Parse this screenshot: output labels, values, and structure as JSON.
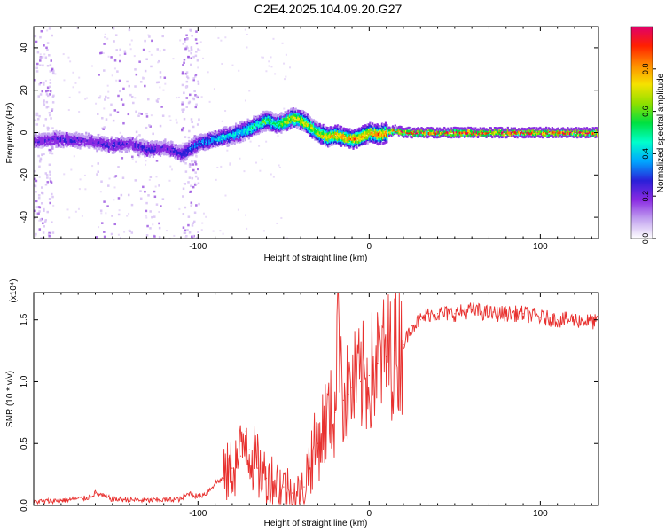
{
  "title": "C2E4.2025.104.09.20.G27",
  "colors": {
    "snr_line": "#e8312f",
    "axis": "#000000",
    "background": "#ffffff"
  },
  "chart_data": [
    {
      "type": "heatmap",
      "name": "spectrogram",
      "xlabel": "Height of straight line (km)",
      "ylabel": "Frequency (Hz)",
      "xlim": [
        -196,
        134
      ],
      "ylim": [
        -50,
        50
      ],
      "x_ticks": [
        "-100",
        "0",
        "100"
      ],
      "x_tick_values": [
        -100,
        0,
        100
      ],
      "y_ticks": [
        "-40",
        "-20",
        "0",
        "20",
        "40"
      ],
      "y_tick_values": [
        -40,
        -20,
        0,
        20,
        40
      ],
      "ridge": {
        "x": [
          -196,
          -180,
          -165,
          -150,
          -140,
          -130,
          -120,
          -110,
          -100,
          -90,
          -80,
          -70,
          -65,
          -60,
          -55,
          -50,
          -45,
          -40,
          -35,
          -30,
          -25,
          -20,
          -15,
          -10,
          -5,
          0,
          5,
          10,
          15,
          20,
          40,
          60,
          80,
          100,
          120,
          134
        ],
        "frequency": [
          -4,
          -3,
          -4,
          -6,
          -5,
          -8,
          -7,
          -10,
          -5,
          -3,
          -1,
          2,
          4,
          6,
          4,
          5,
          7,
          6,
          3,
          0,
          -2,
          -1,
          -2,
          -3,
          -2,
          0,
          -1,
          0,
          1,
          0,
          0,
          0,
          0,
          0,
          0,
          0
        ],
        "amplitude": [
          0.22,
          0.25,
          0.22,
          0.28,
          0.22,
          0.28,
          0.22,
          0.3,
          0.35,
          0.4,
          0.45,
          0.5,
          0.55,
          0.6,
          0.5,
          0.7,
          0.75,
          0.75,
          0.72,
          0.75,
          0.8,
          0.8,
          0.82,
          0.85,
          0.85,
          0.85,
          0.88,
          0.9,
          0.92,
          0.95,
          0.96,
          0.97,
          0.97,
          0.97,
          0.97,
          0.97
        ]
      },
      "noise_bands_km": [
        [
          -196,
          -185
        ],
        [
          -160,
          -120
        ],
        [
          -110,
          -100
        ]
      ],
      "colorbar": {
        "label": "Normalized spectral amplitude",
        "range": [
          0,
          1
        ],
        "ticks": [
          "0.0",
          "0.2",
          "0.4",
          "0.6",
          "0.8"
        ],
        "tick_values": [
          0,
          0.2,
          0.4,
          0.6,
          0.8
        ],
        "stops": [
          "#ffffff",
          "#c3a3f0",
          "#8a2be2",
          "#2a1fd8",
          "#00a6ff",
          "#00ffcc",
          "#00e040",
          "#8fe000",
          "#f6e200",
          "#ff8c00",
          "#ff2000",
          "#e0006a"
        ]
      }
    },
    {
      "type": "line",
      "name": "snr",
      "xlabel": "Height of straight line (km)",
      "ylabel": "SNR (10 * v/v)",
      "y_scale_label": "(x10⁴)",
      "xlim": [
        -196,
        134
      ],
      "ylim": [
        0,
        1.72
      ],
      "x_ticks": [
        "-100",
        "0",
        "100"
      ],
      "x_tick_values": [
        -100,
        0,
        100
      ],
      "y_ticks": [
        "0.0",
        "0.5",
        "1.0",
        "1.5"
      ],
      "y_tick_values": [
        0,
        0.5,
        1.0,
        1.5
      ],
      "series": [
        {
          "name": "SNR",
          "x": [
            -196,
            -180,
            -165,
            -160,
            -150,
            -130,
            -110,
            -105,
            -100,
            -95,
            -90,
            -85,
            -80,
            -75,
            -72,
            -70,
            -65,
            -60,
            -55,
            -50,
            -45,
            -40,
            -38,
            -35,
            -30,
            -25,
            -20,
            -18,
            -15,
            -12,
            -10,
            -5,
            0,
            5,
            10,
            15,
            20,
            25,
            30,
            35,
            40,
            50,
            60,
            70,
            80,
            90,
            100,
            110,
            120,
            134
          ],
          "y": [
            0.03,
            0.04,
            0.06,
            0.1,
            0.05,
            0.04,
            0.05,
            0.1,
            0.07,
            0.1,
            0.18,
            0.22,
            0.3,
            0.4,
            0.6,
            0.45,
            0.3,
            0.22,
            0.2,
            0.15,
            0.1,
            0.07,
            0.15,
            0.35,
            0.5,
            0.7,
            0.75,
            1.72,
            0.85,
            0.9,
            0.95,
            1.0,
            1.05,
            1.15,
            1.2,
            1.25,
            1.3,
            1.45,
            1.5,
            1.55,
            1.55,
            1.55,
            1.58,
            1.55,
            1.55,
            1.55,
            1.52,
            1.5,
            1.5,
            1.48
          ]
        }
      ]
    }
  ]
}
